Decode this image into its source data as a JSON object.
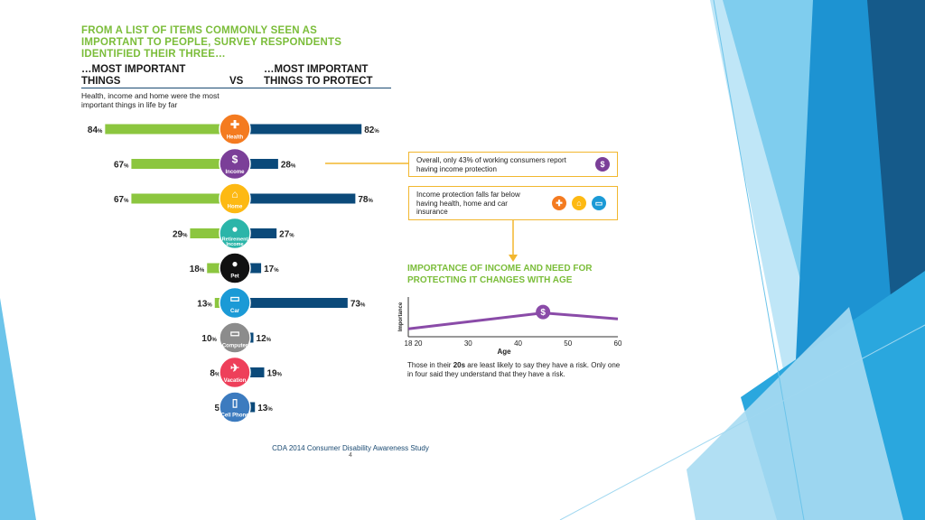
{
  "header": {
    "title": "FROM A LIST OF ITEMS COMMONLY SEEN AS IMPORTANT TO PEOPLE, SURVEY RESPONDENTS IDENTIFIED THEIR THREE…",
    "left_column": "…MOST IMPORTANT THINGS",
    "vs_label": "VS",
    "right_column": "…MOST IMPORTANT THINGS TO PROTECT",
    "subnote": "Health, income and home were the most important things in life by far"
  },
  "chart_data": [
    {
      "type": "bar",
      "orientation": "diverging-horizontal",
      "value_unit": "%",
      "categories": [
        "Health",
        "Income",
        "Home",
        "Retirement Income",
        "Pet",
        "Car",
        "Computer",
        "Vacation",
        "Cell Phone"
      ],
      "series": [
        {
          "name": "…MOST IMPORTANT THINGS",
          "values": [
            84,
            67,
            67,
            29,
            18,
            13,
            10,
            8,
            5
          ],
          "color": "#8cc63f"
        },
        {
          "name": "…MOST IMPORTANT THINGS TO PROTECT",
          "values": [
            82,
            28,
            78,
            27,
            17,
            73,
            12,
            19,
            13
          ],
          "color": "#0b4a7a"
        }
      ],
      "category_icons": [
        "health-cross-icon",
        "dollar-icon",
        "house-icon",
        "piggy-bank-icon",
        "paw-icon",
        "car-icon",
        "computer-icon",
        "plane-icon",
        "phone-icon"
      ],
      "category_colors": [
        "#f47b20",
        "#7b3f98",
        "#fdb913",
        "#2bb5a9",
        "#111111",
        "#1b9ad6",
        "#8c8c8c",
        "#ee3f5a",
        "#3c7bbf"
      ]
    },
    {
      "type": "line",
      "title": "IMPORTANCE OF INCOME AND NEED FOR PROTECTING IT CHANGES WITH AGE",
      "xlabel": "Age",
      "ylabel": "Importance",
      "x_ticks": [
        18,
        20,
        30,
        40,
        50,
        60
      ],
      "xlim": [
        18,
        60
      ],
      "ylim": [
        0,
        1
      ],
      "series": [
        {
          "x": [
            18,
            45,
            60
          ],
          "y": [
            0.2,
            0.6,
            0.45
          ],
          "color": "#8a4ba8"
        }
      ],
      "annotation_icon": "dollar-icon",
      "annotation_x": 45
    }
  ],
  "callouts": {
    "box1": "Overall, only 43% of working consumers report having income protection",
    "box2": "Income protection falls far below having health, home and car insurance",
    "box2_icons": [
      "health-cross-icon",
      "house-icon",
      "car-icon"
    ]
  },
  "caption": {
    "before": "Those in their ",
    "bold": "20s",
    "after": " are least likely to say they have a risk. Only one in four said they understand that they have a risk."
  },
  "footer": {
    "source": "CDA 2014 Consumer Disability Awareness Study",
    "page_number": "4"
  },
  "colors": {
    "accent_green": "#8cc63f",
    "navy": "#0b4a7a",
    "callout_border": "#f2b72f",
    "line_purple": "#8a4ba8",
    "deco_blue": "#1d93d2"
  }
}
